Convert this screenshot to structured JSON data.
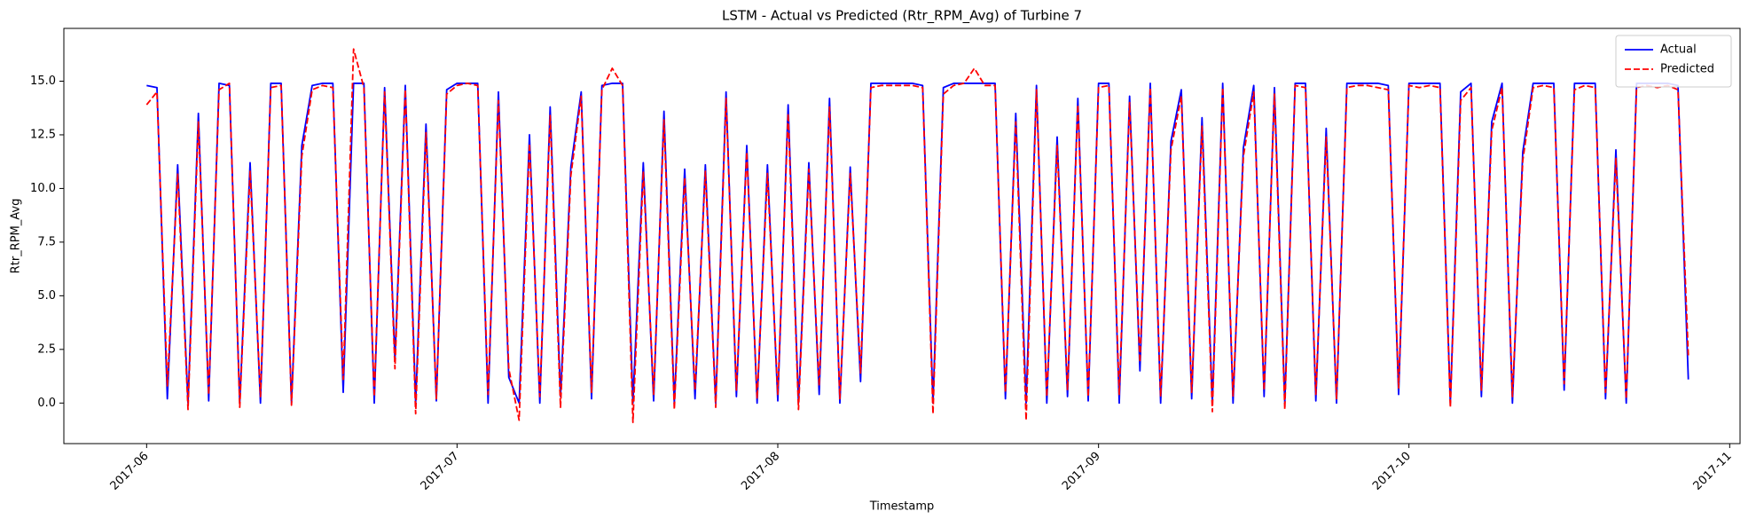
{
  "chart_data": {
    "type": "line",
    "title": "LSTM - Actual vs Predicted (Rtr_RPM_Avg) of Turbine 7",
    "x_label": "Timestamp",
    "y_label": "Rtr_RPM_Avg",
    "x": [
      "2017-06-01",
      "2017-06-02",
      "2017-06-03",
      "2017-06-04",
      "2017-06-05",
      "2017-06-06",
      "2017-06-07",
      "2017-06-08",
      "2017-06-09",
      "2017-06-10",
      "2017-06-11",
      "2017-06-12",
      "2017-06-13",
      "2017-06-14",
      "2017-06-15",
      "2017-06-16",
      "2017-06-17",
      "2017-06-18",
      "2017-06-19",
      "2017-06-20",
      "2017-06-21",
      "2017-06-22",
      "2017-06-23",
      "2017-06-24",
      "2017-06-25",
      "2017-06-26",
      "2017-06-27",
      "2017-06-28",
      "2017-06-29",
      "2017-06-30",
      "2017-07-01",
      "2017-07-02",
      "2017-07-03",
      "2017-07-04",
      "2017-07-05",
      "2017-07-06",
      "2017-07-07",
      "2017-07-08",
      "2017-07-09",
      "2017-07-10",
      "2017-07-11",
      "2017-07-12",
      "2017-07-13",
      "2017-07-14",
      "2017-07-15",
      "2017-07-16",
      "2017-07-17",
      "2017-07-18",
      "2017-07-19",
      "2017-07-20",
      "2017-07-21",
      "2017-07-22",
      "2017-07-23",
      "2017-07-24",
      "2017-07-25",
      "2017-07-26",
      "2017-07-27",
      "2017-07-28",
      "2017-07-29",
      "2017-07-30",
      "2017-07-31",
      "2017-08-01",
      "2017-08-02",
      "2017-08-03",
      "2017-08-04",
      "2017-08-05",
      "2017-08-06",
      "2017-08-07",
      "2017-08-08",
      "2017-08-09",
      "2017-08-10",
      "2017-08-11",
      "2017-08-12",
      "2017-08-13",
      "2017-08-14",
      "2017-08-15",
      "2017-08-16",
      "2017-08-17",
      "2017-08-18",
      "2017-08-19",
      "2017-08-20",
      "2017-08-21",
      "2017-08-22",
      "2017-08-23",
      "2017-08-24",
      "2017-08-25",
      "2017-08-26",
      "2017-08-27",
      "2017-08-28",
      "2017-08-29",
      "2017-08-30",
      "2017-08-31",
      "2017-09-01",
      "2017-09-02",
      "2017-09-03",
      "2017-09-04",
      "2017-09-05",
      "2017-09-06",
      "2017-09-07",
      "2017-09-08",
      "2017-09-09",
      "2017-09-10",
      "2017-09-11",
      "2017-09-12",
      "2017-09-13",
      "2017-09-14",
      "2017-09-15",
      "2017-09-16",
      "2017-09-17",
      "2017-09-18",
      "2017-09-19",
      "2017-09-20",
      "2017-09-21",
      "2017-09-22",
      "2017-09-23",
      "2017-09-24",
      "2017-09-25",
      "2017-09-26",
      "2017-09-27",
      "2017-09-28",
      "2017-09-29",
      "2017-09-30",
      "2017-10-01",
      "2017-10-02",
      "2017-10-03",
      "2017-10-04",
      "2017-10-05",
      "2017-10-06",
      "2017-10-07",
      "2017-10-08",
      "2017-10-09",
      "2017-10-10",
      "2017-10-11",
      "2017-10-12",
      "2017-10-13",
      "2017-10-14",
      "2017-10-15",
      "2017-10-16",
      "2017-10-17",
      "2017-10-18",
      "2017-10-19",
      "2017-10-20",
      "2017-10-21",
      "2017-10-22",
      "2017-10-23",
      "2017-10-24",
      "2017-10-25",
      "2017-10-26",
      "2017-10-27",
      "2017-10-28"
    ],
    "series": [
      {
        "name": "Actual",
        "color": "#0000ff",
        "linestyle": "solid",
        "values": [
          14.8,
          14.7,
          0.2,
          11.1,
          0,
          13.5,
          0.1,
          14.9,
          14.8,
          0,
          11.2,
          0,
          14.9,
          14.9,
          0,
          12,
          14.8,
          14.9,
          14.9,
          0.5,
          14.9,
          14.9,
          0,
          14.7,
          2,
          14.8,
          0,
          13,
          0.1,
          14.6,
          14.9,
          14.9,
          14.9,
          0,
          14.5,
          1.2,
          0,
          12.5,
          0,
          13.8,
          0.3,
          11,
          14.5,
          0.2,
          14.8,
          14.9,
          14.9,
          0,
          11.2,
          0.1,
          13.6,
          0,
          10.9,
          0.2,
          11.1,
          0,
          14.5,
          0.3,
          12,
          0,
          11.1,
          0.1,
          13.9,
          0,
          11.2,
          0.4,
          14.2,
          0,
          11,
          1,
          14.9,
          14.9,
          14.9,
          14.9,
          14.9,
          14.8,
          0,
          14.7,
          14.9,
          14.9,
          14.9,
          14.9,
          14.9,
          0.2,
          13.5,
          0,
          14.8,
          0,
          12.4,
          0.3,
          14.2,
          0.1,
          14.9,
          14.9,
          0,
          14.3,
          1.5,
          14.9,
          0,
          12.2,
          14.6,
          0.2,
          13.3,
          0,
          14.9,
          0,
          11.9,
          14.8,
          0.3,
          14.7,
          0,
          14.9,
          14.9,
          0.1,
          12.8,
          0,
          14.9,
          14.9,
          14.9,
          14.9,
          14.8,
          0.4,
          14.9,
          14.9,
          14.9,
          14.9,
          0,
          14.5,
          14.9,
          0.3,
          13.1,
          14.9,
          0,
          11.7,
          14.9,
          14.9,
          14.9,
          0.6,
          14.9,
          14.9,
          14.9,
          0.2,
          11.8,
          0,
          14.9,
          14.9,
          14.9,
          14.9,
          14.8,
          1.1
        ]
      },
      {
        "name": "Predicted",
        "color": "#ff0000",
        "linestyle": "dashed",
        "values": [
          13.9,
          14.5,
          0.8,
          10.7,
          -0.3,
          13.1,
          0.4,
          14.6,
          14.9,
          -0.2,
          10.8,
          0.3,
          14.7,
          14.8,
          -0.1,
          11.5,
          14.6,
          14.8,
          14.7,
          1.1,
          16.5,
          14.7,
          0.3,
          14.5,
          1.6,
          14.6,
          -0.5,
          12.6,
          0.2,
          14.4,
          14.8,
          14.9,
          14.8,
          0.4,
          14.1,
          1.6,
          -0.8,
          12.1,
          0.3,
          13.4,
          -0.2,
          10.6,
          14.3,
          0.5,
          14.6,
          15.6,
          14.8,
          -0.9,
          10.8,
          0.4,
          13.2,
          -0.3,
          10.5,
          0.6,
          10.8,
          -0.2,
          14.2,
          0.6,
          11.7,
          0.2,
          10.7,
          0.4,
          13.5,
          -0.3,
          10.9,
          0.8,
          13.8,
          0.2,
          10.7,
          1.4,
          14.7,
          14.8,
          14.8,
          14.8,
          14.8,
          14.7,
          -0.5,
          14.4,
          14.8,
          14.9,
          15.6,
          14.8,
          14.8,
          0.5,
          13.1,
          -0.8,
          14.6,
          0.3,
          12,
          0.6,
          13.9,
          0.3,
          14.7,
          14.8,
          0.4,
          14,
          1.9,
          14.7,
          0.3,
          11.8,
          14.3,
          0.5,
          12.9,
          -0.4,
          14.7,
          0.3,
          11.5,
          14.5,
          0.6,
          14.4,
          -0.3,
          14.8,
          14.7,
          0.4,
          12.4,
          0.2,
          14.7,
          14.8,
          14.8,
          14.7,
          14.6,
          0.7,
          14.8,
          14.7,
          14.8,
          14.7,
          -0.2,
          14.1,
          14.7,
          0.6,
          12.7,
          14.7,
          0.3,
          11.3,
          14.7,
          14.8,
          14.7,
          0.9,
          14.6,
          14.8,
          14.7,
          0.5,
          11.4,
          0.2,
          14.7,
          14.8,
          14.7,
          14.8,
          14.6,
          2.2
        ]
      }
    ],
    "xlim": [
      "2017-05-24",
      "2017-11-02"
    ],
    "xticks": [
      {
        "value": "2017-06-01",
        "label": "2017-06"
      },
      {
        "value": "2017-07-01",
        "label": "2017-07"
      },
      {
        "value": "2017-08-01",
        "label": "2017-08"
      },
      {
        "value": "2017-09-01",
        "label": "2017-09"
      },
      {
        "value": "2017-10-01",
        "label": "2017-10"
      },
      {
        "value": "2017-11-01",
        "label": "2017-11"
      }
    ],
    "ylim": [
      -1.89,
      17.46
    ],
    "yticks": [
      {
        "value": 0,
        "label": "0.0"
      },
      {
        "value": 2.5,
        "label": "2.5"
      },
      {
        "value": 5,
        "label": "5.0"
      },
      {
        "value": 7.5,
        "label": "7.5"
      },
      {
        "value": 10,
        "label": "10.0"
      },
      {
        "value": 12.5,
        "label": "12.5"
      },
      {
        "value": 15,
        "label": "15.0"
      }
    ],
    "grid": false,
    "legend": "upper right"
  }
}
